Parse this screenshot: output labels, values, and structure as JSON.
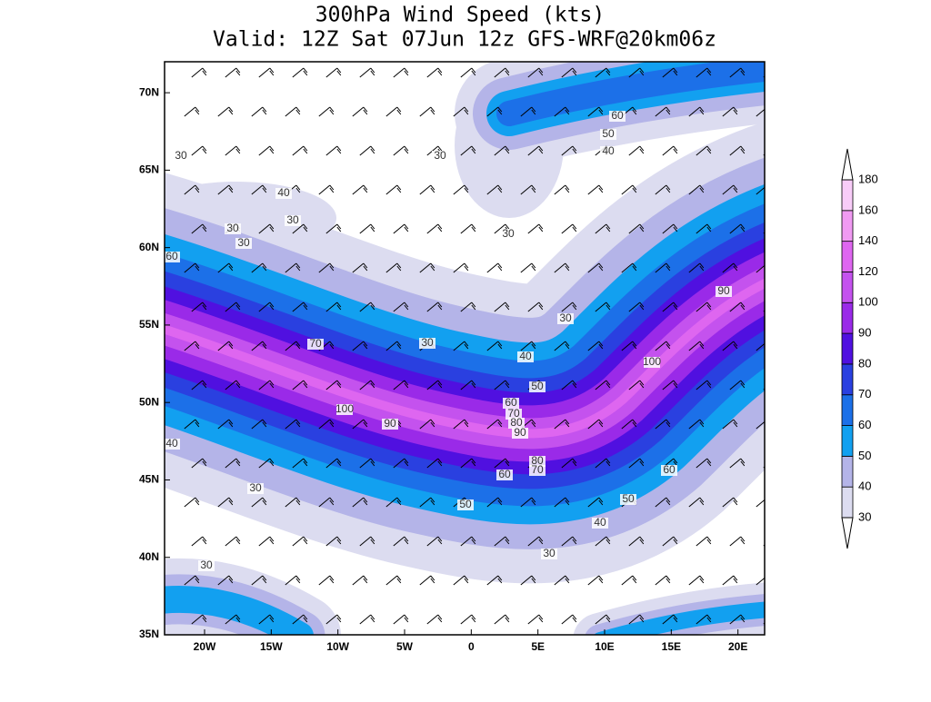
{
  "title": [
    "300hPa Wind Speed (kts)",
    "Valid: 12Z Sat 07Jun 12z GFS-WRF@20km06z"
  ],
  "map": {
    "xlim": [
      -23,
      22
    ],
    "ylim": [
      35,
      72
    ],
    "xticks": [
      {
        "value": -20,
        "label": "20W"
      },
      {
        "value": -15,
        "label": "15W"
      },
      {
        "value": -10,
        "label": "10W"
      },
      {
        "value": -5,
        "label": "5W"
      },
      0,
      {
        "value": 5,
        "label": "5E"
      },
      {
        "value": 10,
        "label": "10E"
      },
      {
        "value": 15,
        "label": "15E"
      },
      {
        "value": 20,
        "label": "20E"
      }
    ],
    "yticks": [
      {
        "value": 35,
        "label": "35N"
      },
      {
        "value": 40,
        "label": "40N"
      },
      {
        "value": 45,
        "label": "45N"
      },
      {
        "value": 50,
        "label": "50N"
      },
      {
        "value": 55,
        "label": "55N"
      },
      {
        "value": 60,
        "label": "60N"
      },
      {
        "value": 65,
        "label": "65N"
      },
      {
        "value": 70,
        "label": "70N"
      }
    ]
  },
  "colorbar": {
    "levels": [
      30,
      40,
      50,
      60,
      70,
      80,
      90,
      100,
      120,
      140,
      160,
      180
    ],
    "colors": [
      "#dcdcf0",
      "#b4b4e8",
      "#12a0f0",
      "#1c70e8",
      "#2a40e0",
      "#5010e0",
      "#9a2ae8",
      "#c452ee",
      "#de66f0",
      "#f09af2",
      "#f8ccf8"
    ]
  },
  "contour_labels": [
    "60",
    "50",
    "40",
    "30",
    "30",
    "40",
    "30",
    "30",
    "30",
    "30",
    "60",
    "90",
    "30",
    "70",
    "30",
    "40",
    "100",
    "50",
    "60",
    "70",
    "80",
    "90",
    "100",
    "90",
    "40",
    "80",
    "70",
    "60",
    "60",
    "30",
    "50",
    "50",
    "40",
    "30",
    "30"
  ]
}
